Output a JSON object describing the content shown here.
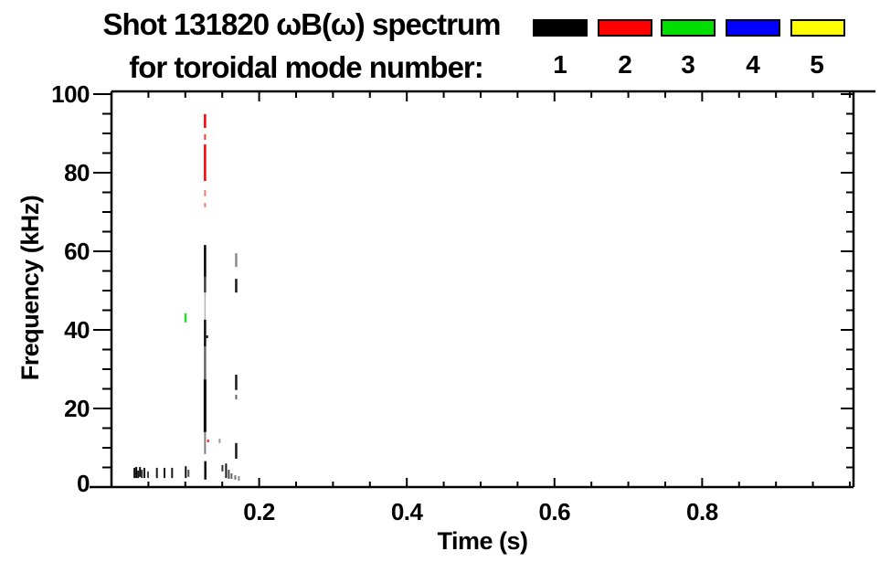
{
  "chart_data": {
    "type": "scatter",
    "title_line1": "Shot 131820 ωB(ω) spectrum",
    "title_line2": "for toroidal mode number:",
    "xlabel": "Time (s)",
    "ylabel": "Frequency (kHz)",
    "xlim": [
      0,
      1.005
    ],
    "ylim": [
      0,
      100.7
    ],
    "x_ticks": [
      {
        "value": 0.2,
        "label": "0.2"
      },
      {
        "value": 0.4,
        "label": "0.4"
      },
      {
        "value": 0.6,
        "label": "0.6"
      },
      {
        "value": 0.8,
        "label": "0.8"
      }
    ],
    "x_minor_step": 0.05,
    "y_ticks": [
      {
        "value": 0,
        "label": "0"
      },
      {
        "value": 20,
        "label": "20"
      },
      {
        "value": 40,
        "label": "40"
      },
      {
        "value": 60,
        "label": "60"
      },
      {
        "value": 80,
        "label": "80"
      },
      {
        "value": 100,
        "label": "100"
      }
    ],
    "y_minor_step": 5,
    "grid": false,
    "legend_position": "top-right",
    "legend": [
      {
        "label": "1",
        "color": "#000000"
      },
      {
        "label": "2",
        "color": "#ff0000"
      },
      {
        "label": "3",
        "color": "#00dd00"
      },
      {
        "label": "4",
        "color": "#0000ff"
      },
      {
        "label": "5",
        "color": "#ffff00"
      }
    ],
    "series": [
      {
        "name": "toroidal mode n=1",
        "color": "#000000",
        "segments_format": [
          "time_s",
          "freq_lo_kHz",
          "freq_hi_kHz",
          "alpha",
          "stroke_px"
        ],
        "segments": [
          [
            0.1267,
            53.5,
            61.6,
            1.0,
            2.5
          ],
          [
            0.1267,
            49.5,
            53.5,
            0.75,
            2.5
          ],
          [
            0.1267,
            42.6,
            49.5,
            0.3,
            1.5
          ],
          [
            0.1267,
            35.8,
            42.6,
            0.95,
            2.5
          ],
          [
            0.1267,
            27.4,
            35.8,
            0.6,
            2.5
          ],
          [
            0.1267,
            14.0,
            27.4,
            0.95,
            3
          ],
          [
            0.1267,
            8.4,
            14.0,
            0.5,
            2
          ],
          [
            0.1271,
            1.9,
            6.6,
            0.95,
            2.5
          ],
          [
            0.1296,
            37.9,
            38.6,
            0.9,
            2
          ],
          [
            0.1465,
            11.2,
            12.3,
            0.4,
            2
          ],
          [
            0.1689,
            56.0,
            59.5,
            0.45,
            2.5
          ],
          [
            0.1689,
            49.5,
            53.0,
            0.9,
            2.5
          ],
          [
            0.1689,
            24.7,
            28.6,
            0.9,
            2.5
          ],
          [
            0.1689,
            22.3,
            23.5,
            0.6,
            2
          ],
          [
            0.1689,
            7.2,
            11.2,
            0.9,
            2.5
          ],
          [
            0.031,
            2.3,
            4.9,
            0.9,
            2
          ],
          [
            0.0336,
            2.3,
            5.1,
            1.0,
            2
          ],
          [
            0.0361,
            2.3,
            4.2,
            0.9,
            2
          ],
          [
            0.0386,
            2.6,
            5.1,
            0.95,
            2
          ],
          [
            0.0411,
            2.3,
            4.4,
            0.85,
            2
          ],
          [
            0.0446,
            2.3,
            4.9,
            0.9,
            2
          ],
          [
            0.0495,
            2.3,
            4.0,
            0.7,
            2
          ],
          [
            0.0615,
            2.3,
            4.9,
            0.9,
            2
          ],
          [
            0.0718,
            2.3,
            4.9,
            0.9,
            2
          ],
          [
            0.0821,
            2.3,
            4.9,
            0.9,
            2
          ],
          [
            0.1006,
            2.3,
            5.3,
            0.95,
            2
          ],
          [
            0.1043,
            2.6,
            4.4,
            0.7,
            2
          ],
          [
            0.1503,
            4.0,
            5.6,
            0.8,
            2
          ],
          [
            0.1552,
            2.3,
            6.0,
            0.9,
            2
          ],
          [
            0.1589,
            2.1,
            4.4,
            0.7,
            2
          ],
          [
            0.1626,
            2.1,
            3.5,
            0.6,
            2
          ],
          [
            0.1676,
            1.9,
            3.0,
            0.55,
            2
          ],
          [
            0.1725,
            1.6,
            2.8,
            0.45,
            2
          ]
        ]
      },
      {
        "name": "toroidal mode n=2",
        "color": "#ff0000",
        "segments_format": [
          "time_s",
          "freq_lo_kHz",
          "freq_hi_kHz",
          "alpha",
          "stroke_px"
        ],
        "segments": [
          [
            0.1267,
            91.4,
            94.9,
            1.0,
            2.5
          ],
          [
            0.1267,
            88.4,
            89.8,
            0.8,
            2
          ],
          [
            0.1267,
            77.9,
            87.2,
            1.0,
            2.5
          ],
          [
            0.1267,
            74.0,
            75.6,
            0.55,
            2
          ],
          [
            0.1267,
            71.2,
            72.3,
            0.55,
            2
          ],
          [
            0.1308,
            11.4,
            12.1,
            0.9,
            2
          ]
        ]
      },
      {
        "name": "toroidal mode n=3",
        "color": "#00dd00",
        "segments_format": [
          "time_s",
          "freq_lo_kHz",
          "freq_hi_kHz",
          "alpha",
          "stroke_px"
        ],
        "segments": [
          [
            0.1003,
            41.9,
            44.2,
            0.85,
            2.5
          ]
        ]
      },
      {
        "name": "toroidal mode n=4",
        "color": "#0000ff",
        "segments": []
      },
      {
        "name": "toroidal mode n=5",
        "color": "#ffff00",
        "segments": []
      }
    ]
  }
}
